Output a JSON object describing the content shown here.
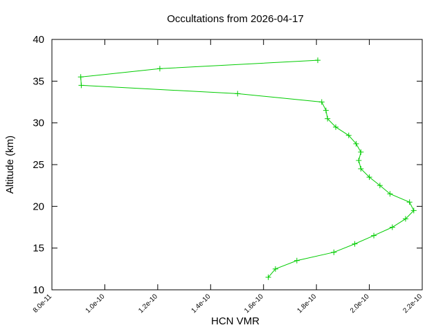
{
  "chart_data": {
    "type": "line",
    "title": "Occultations from 2026-04-17",
    "xlabel": "HCN VMR",
    "ylabel": "Altitude (km)",
    "xlim": [
      8e-11,
      2.2e-10
    ],
    "ylim": [
      10,
      40
    ],
    "xticks": [
      8e-11,
      1e-10,
      1.2e-10,
      1.4e-10,
      1.6e-10,
      1.8e-10,
      2e-10,
      2.2e-10
    ],
    "xtick_labels": [
      "8.0e-11",
      "1.0e-10",
      "1.2e-10",
      "1.4e-10",
      "1.6e-10",
      "1.8e-10",
      "2.0e-10",
      "2.2e-10"
    ],
    "yticks": [
      10,
      15,
      20,
      25,
      30,
      35,
      40
    ],
    "ytick_labels": [
      "10",
      "15",
      "20",
      "25",
      "30",
      "35",
      "40"
    ],
    "grid": false,
    "series": [
      {
        "color": "#00cc00",
        "marker": "plus",
        "x": [
          1.618e-10,
          1.645e-10,
          1.726e-10,
          1.866e-10,
          1.945e-10,
          2.017e-10,
          2.087e-10,
          2.137e-10,
          2.168e-10,
          2.152e-10,
          2.078e-10,
          2.04e-10,
          2e-10,
          1.968e-10,
          1.96e-10,
          1.968e-10,
          1.95e-10,
          1.922e-10,
          1.873e-10,
          1.842e-10,
          1.836e-10,
          1.82e-10,
          1.502e-10,
          9.11e-11,
          9.09e-11,
          1.208e-10,
          1.805e-10
        ],
        "y": [
          11.5,
          12.5,
          13.5,
          14.5,
          15.5,
          16.5,
          17.5,
          18.5,
          19.5,
          20.5,
          21.5,
          22.5,
          23.5,
          24.5,
          25.5,
          26.5,
          27.5,
          28.5,
          29.5,
          30.5,
          31.5,
          32.5,
          33.5,
          34.5,
          35.5,
          36.5,
          37.5
        ]
      }
    ]
  }
}
